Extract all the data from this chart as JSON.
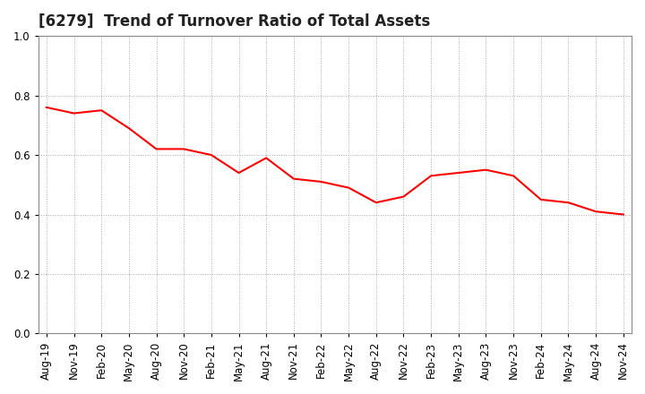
{
  "title": "[6279]  Trend of Turnover Ratio of Total Assets",
  "x_labels": [
    "Aug-19",
    "Nov-19",
    "Feb-20",
    "May-20",
    "Aug-20",
    "Nov-20",
    "Feb-21",
    "May-21",
    "Aug-21",
    "Nov-21",
    "Feb-22",
    "May-22",
    "Aug-22",
    "Nov-22",
    "Feb-23",
    "May-23",
    "Aug-23",
    "Nov-23",
    "Feb-24",
    "May-24",
    "Aug-24",
    "Nov-24"
  ],
  "y_values": [
    0.76,
    0.74,
    0.75,
    0.69,
    0.62,
    0.62,
    0.6,
    0.54,
    0.59,
    0.52,
    0.51,
    0.49,
    0.44,
    0.46,
    0.53,
    0.54,
    0.55,
    0.53,
    0.45,
    0.44,
    0.41,
    0.4
  ],
  "line_color": "#FF0000",
  "line_width": 1.5,
  "ylim": [
    0.0,
    1.0
  ],
  "yticks": [
    0.0,
    0.2,
    0.4,
    0.6,
    0.8,
    1.0
  ],
  "background_color": "#FFFFFF",
  "grid_color": "#AAAAAA",
  "title_fontsize": 12,
  "tick_fontsize": 8.5,
  "spine_color": "#888888"
}
